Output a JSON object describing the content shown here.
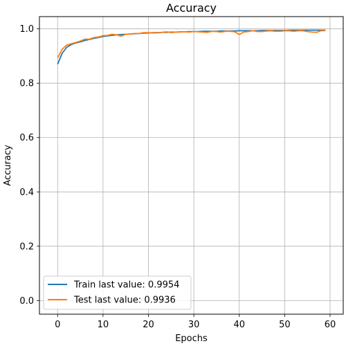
{
  "chart_data": {
    "type": "line",
    "title": "Accuracy",
    "xlabel": "Epochs",
    "ylabel": "Accuracy",
    "xlim": [
      -4,
      62.9
    ],
    "ylim": [
      -0.05,
      1.045
    ],
    "xticks": [
      0,
      10,
      20,
      30,
      40,
      50,
      60
    ],
    "yticks": [
      0.0,
      0.2,
      0.4,
      0.6,
      0.8,
      1.0
    ],
    "xtick_labels": [
      "0",
      "10",
      "20",
      "30",
      "40",
      "50",
      "60"
    ],
    "ytick_labels": [
      "0.0",
      "0.2",
      "0.4",
      "0.6",
      "0.8",
      "1.0"
    ],
    "grid": true,
    "legend_position": "lower-left",
    "series": [
      {
        "name": "Train last value: 0.9954",
        "color": "#1f77b4",
        "x": [
          0,
          1,
          2,
          3,
          4,
          5,
          6,
          7,
          8,
          9,
          10,
          11,
          12,
          13,
          14,
          15,
          16,
          17,
          18,
          19,
          20,
          21,
          22,
          23,
          24,
          25,
          26,
          27,
          28,
          29,
          30,
          31,
          32,
          33,
          34,
          35,
          36,
          37,
          38,
          39,
          40,
          41,
          42,
          43,
          44,
          45,
          46,
          47,
          48,
          49,
          50,
          51,
          52,
          53,
          54,
          55,
          56,
          57,
          58,
          59
        ],
        "values": [
          0.87,
          0.91,
          0.932,
          0.942,
          0.948,
          0.952,
          0.957,
          0.961,
          0.965,
          0.968,
          0.972,
          0.974,
          0.976,
          0.978,
          0.979,
          0.98,
          0.981,
          0.982,
          0.983,
          0.984,
          0.985,
          0.986,
          0.986,
          0.987,
          0.987,
          0.988,
          0.988,
          0.989,
          0.989,
          0.99,
          0.99,
          0.99,
          0.991,
          0.991,
          0.991,
          0.991,
          0.992,
          0.992,
          0.992,
          0.992,
          0.993,
          0.993,
          0.993,
          0.993,
          0.993,
          0.994,
          0.994,
          0.994,
          0.994,
          0.994,
          0.994,
          0.995,
          0.995,
          0.995,
          0.995,
          0.995,
          0.995,
          0.995,
          0.995,
          0.9954
        ]
      },
      {
        "name": "Test last value: 0.9936",
        "color": "#ff7f0e",
        "x": [
          0,
          1,
          2,
          3,
          4,
          5,
          6,
          7,
          8,
          9,
          10,
          11,
          12,
          13,
          14,
          15,
          16,
          17,
          18,
          19,
          20,
          21,
          22,
          23,
          24,
          25,
          26,
          27,
          28,
          29,
          30,
          31,
          32,
          33,
          34,
          35,
          36,
          37,
          38,
          39,
          40,
          41,
          42,
          43,
          44,
          45,
          46,
          47,
          48,
          49,
          50,
          51,
          52,
          53,
          54,
          55,
          56,
          57,
          58,
          59
        ],
        "values": [
          0.893,
          0.925,
          0.94,
          0.945,
          0.95,
          0.955,
          0.962,
          0.962,
          0.968,
          0.97,
          0.975,
          0.976,
          0.98,
          0.978,
          0.973,
          0.98,
          0.981,
          0.983,
          0.983,
          0.986,
          0.986,
          0.985,
          0.985,
          0.987,
          0.989,
          0.986,
          0.988,
          0.988,
          0.989,
          0.988,
          0.99,
          0.989,
          0.988,
          0.987,
          0.991,
          0.99,
          0.988,
          0.991,
          0.991,
          0.989,
          0.979,
          0.988,
          0.99,
          0.993,
          0.99,
          0.99,
          0.992,
          0.993,
          0.991,
          0.991,
          0.993,
          0.993,
          0.991,
          0.993,
          0.993,
          0.99,
          0.988,
          0.987,
          0.993,
          0.9936
        ]
      }
    ]
  }
}
